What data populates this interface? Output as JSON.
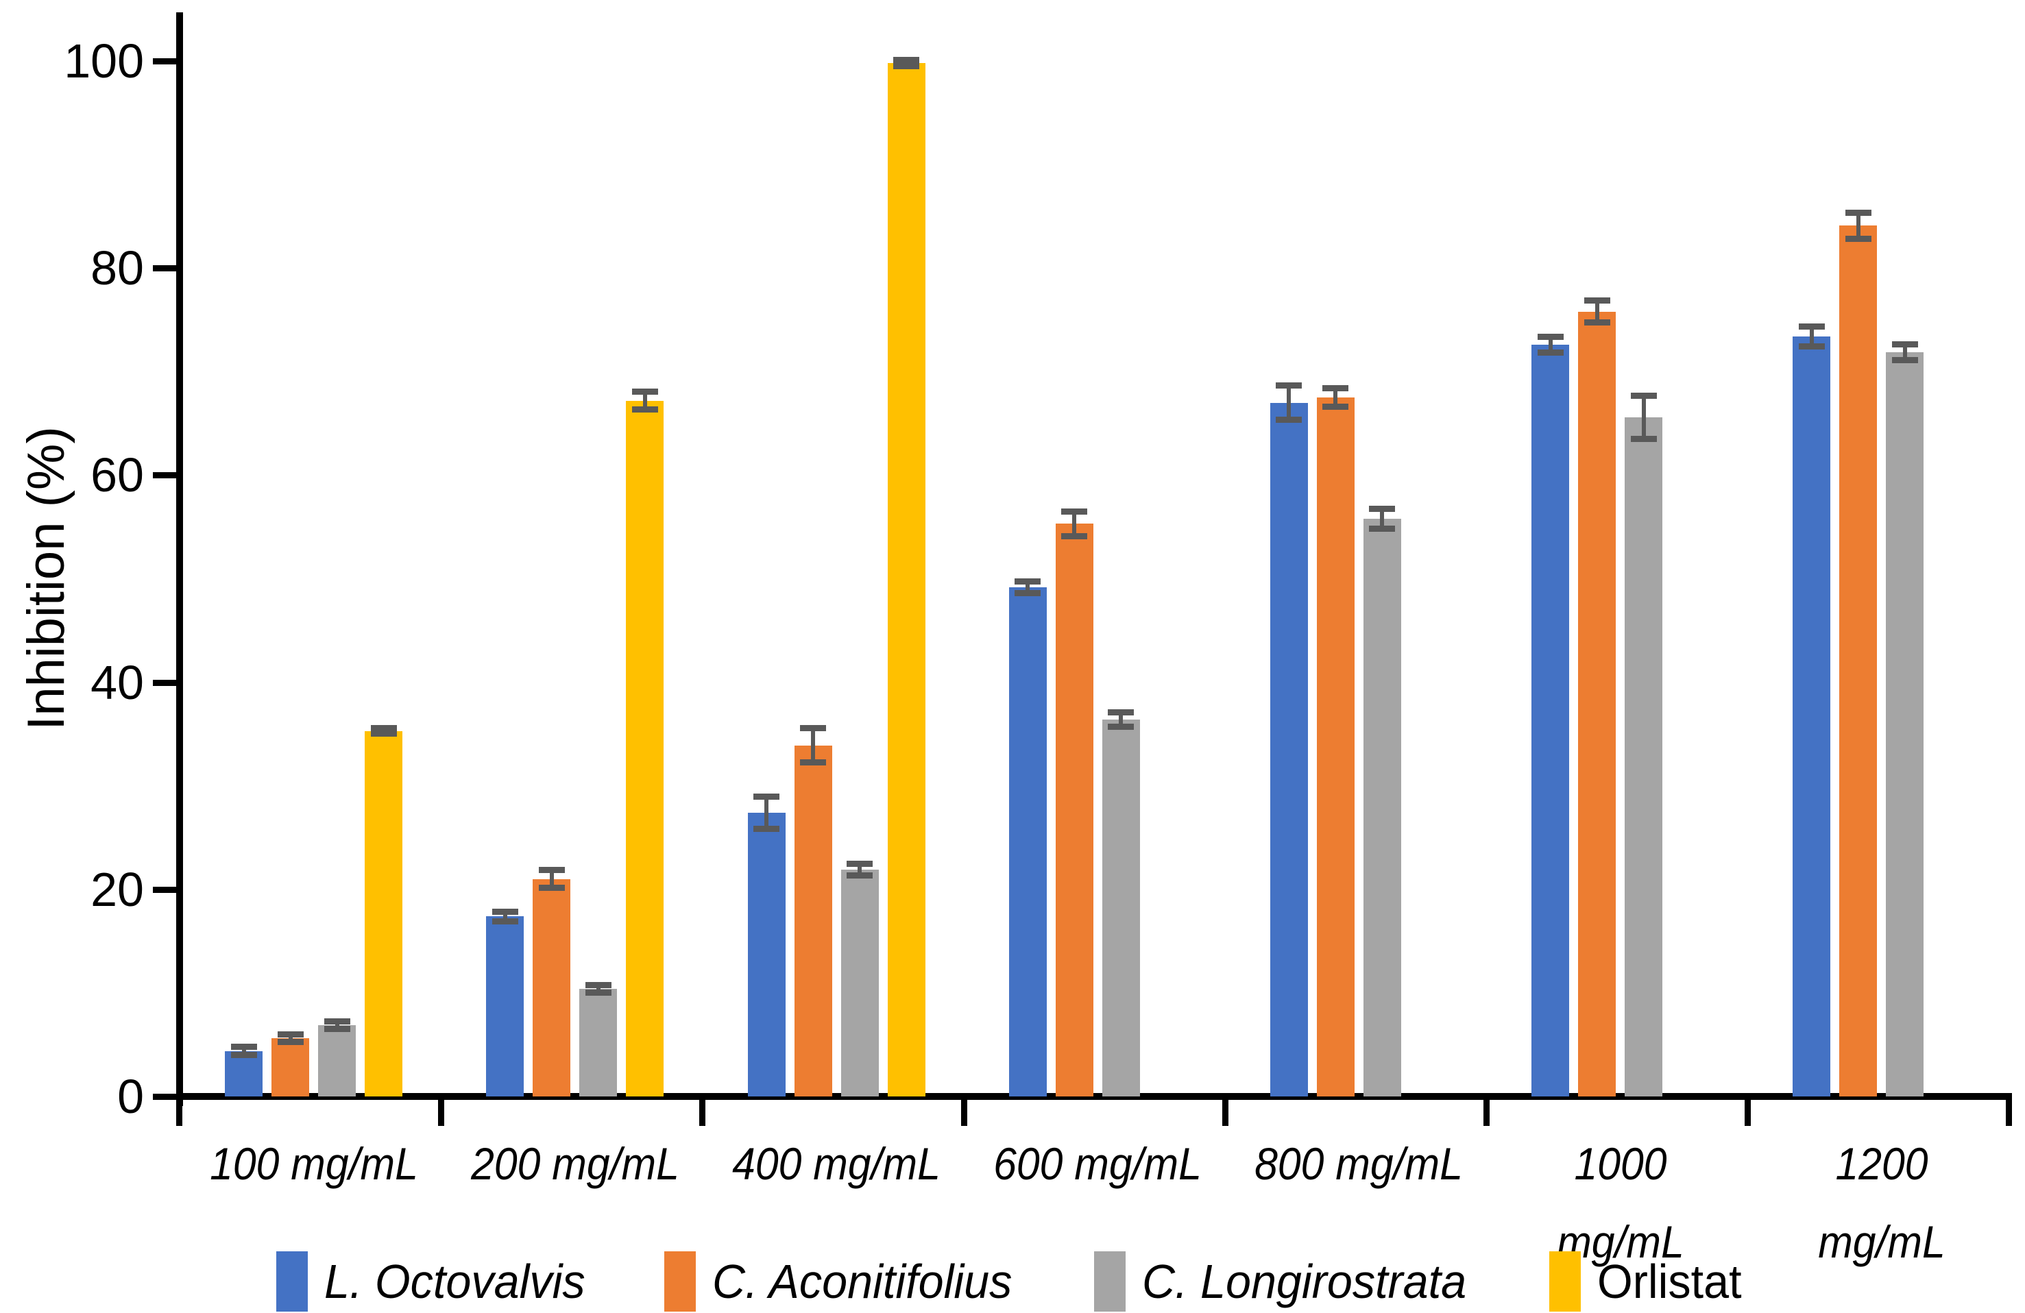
{
  "chart_data": {
    "type": "bar",
    "title": "",
    "ylabel": "Inhibition (%)",
    "xlabel": "",
    "ylim": [
      0,
      100
    ],
    "yticks": [
      0,
      20,
      40,
      60,
      80,
      100
    ],
    "grid": false,
    "legend_position": "bottom",
    "error_bars": true,
    "error_bar_color": "#595959",
    "axis_color": "#000000",
    "categories": [
      "100 mg/mL",
      "200 mg/mL",
      "400 mg/mL",
      "600 mg/mL",
      "800 mg/mL",
      "1000 mg/mL",
      "1200 mg/mL"
    ],
    "category_label_lines": [
      [
        "100 mg/mL"
      ],
      [
        "200 mg/mL"
      ],
      [
        "400 mg/mL"
      ],
      [
        "600 mg/mL"
      ],
      [
        "800 mg/mL"
      ],
      [
        "1000",
        "mg/mL"
      ],
      [
        "1200",
        "mg/mL"
      ]
    ],
    "series": [
      {
        "name": "L. Octovalvis",
        "color": "#4472C4",
        "italic_label": true,
        "values": [
          4.4,
          17.4,
          27.4,
          49.2,
          67.0,
          72.6,
          73.4
        ],
        "errors": [
          0.4,
          0.5,
          1.6,
          0.6,
          1.7,
          0.8,
          1.0
        ]
      },
      {
        "name": "C. Aconitifolius",
        "color": "#ED7D31",
        "italic_label": true,
        "values": [
          5.6,
          21.0,
          33.9,
          55.3,
          67.5,
          75.8,
          84.1
        ],
        "errors": [
          0.4,
          0.9,
          1.7,
          1.2,
          0.9,
          1.1,
          1.3
        ]
      },
      {
        "name": "C. Longirostrata",
        "color": "#A5A5A5",
        "italic_label": true,
        "values": [
          6.9,
          10.4,
          21.9,
          36.4,
          55.8,
          65.6,
          71.9
        ],
        "errors": [
          0.4,
          0.4,
          0.6,
          0.7,
          1.0,
          2.1,
          0.8
        ]
      },
      {
        "name": "Orlistat",
        "color": "#FFC000",
        "italic_label": false,
        "values": [
          35.3,
          67.2,
          99.8,
          null,
          null,
          null,
          null
        ],
        "errors": [
          0.3,
          0.9,
          0.3,
          null,
          null,
          null,
          null
        ]
      }
    ]
  }
}
